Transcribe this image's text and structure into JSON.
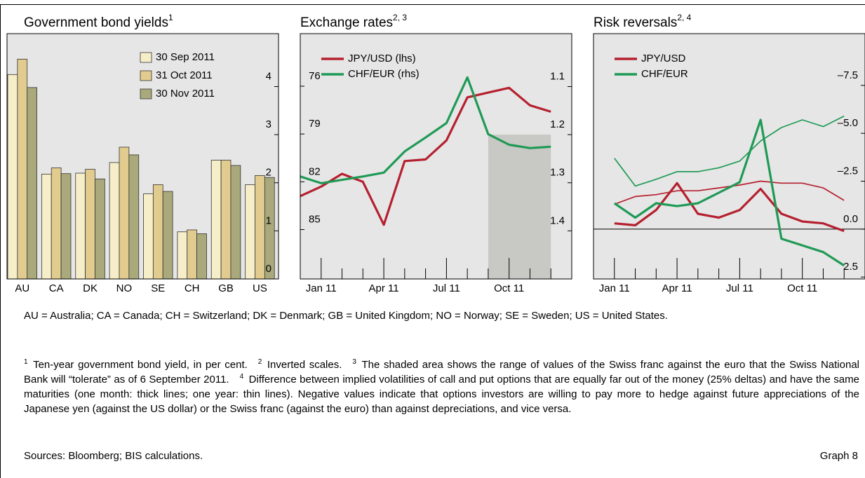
{
  "chart_data": [
    {
      "type": "bar",
      "title": "Government bond yields",
      "title_note": "1",
      "categories": [
        "AU",
        "CA",
        "DK",
        "NO",
        "SE",
        "CH",
        "GB",
        "US"
      ],
      "series": [
        {
          "name": "30 Sep 2011",
          "color": "#f6eec8",
          "values": [
            4.25,
            2.18,
            2.2,
            2.42,
            1.77,
            0.98,
            2.47,
            1.96
          ]
        },
        {
          "name": "31 Oct 2011",
          "color": "#e2cb8e",
          "values": [
            4.57,
            2.31,
            2.28,
            2.74,
            1.96,
            1.02,
            2.47,
            2.15
          ]
        },
        {
          "name": "30 Nov 2011",
          "color": "#a9a97c",
          "values": [
            3.98,
            2.19,
            2.08,
            2.58,
            1.82,
            0.94,
            2.36,
            2.11
          ]
        }
      ],
      "ylim": [
        0,
        5.1
      ],
      "yticks": [
        0,
        1,
        2,
        3,
        4
      ],
      "yaxis_side": "right",
      "legend": "upper right"
    },
    {
      "type": "line",
      "title": "Exchange rates",
      "title_note": "2, 3",
      "x": [
        "2010-12",
        "2011-01",
        "2011-02",
        "2011-03",
        "2011-04",
        "2011-05",
        "2011-06",
        "2011-07",
        "2011-08",
        "2011-09",
        "2011-10",
        "2011-11",
        "2011-12"
      ],
      "series": [
        {
          "name": "JPY/USD (lhs)",
          "color": "#b5202f",
          "axis": "y",
          "values": [
            82.9,
            82.3,
            81.5,
            82.0,
            84.7,
            80.7,
            80.6,
            79.4,
            76.7,
            76.4,
            76.1,
            77.2,
            77.6
          ]
        },
        {
          "name": "CHF/EUR (rhs)",
          "color": "#1f9a55",
          "axis": "y2",
          "values": [
            1.287,
            1.301,
            1.294,
            1.287,
            1.279,
            1.235,
            1.206,
            1.176,
            1.081,
            1.199,
            1.221,
            1.228,
            1.225
          ]
        }
      ],
      "xlim": [
        "2010-12",
        "2012-01"
      ],
      "xticks": [
        {
          "value": "2011-01",
          "label": "Jan 11"
        },
        {
          "value": "2011-04",
          "label": "Apr 11"
        },
        {
          "value": "2011-07",
          "label": "Jul 11"
        },
        {
          "value": "2011-10",
          "label": "Oct 11"
        }
      ],
      "xticks_minor": [
        "2010-12",
        "2011-02",
        "2011-03",
        "2011-05",
        "2011-06",
        "2011-08",
        "2011-09",
        "2011-11",
        "2011-12"
      ],
      "ylim": [
        88.1,
        72.7
      ],
      "yticks": [
        76,
        79,
        82,
        85
      ],
      "y2lim": [
        1.5,
        0.99
      ],
      "y2ticks": [
        1.1,
        1.2,
        1.3,
        1.4
      ],
      "yaxis_side": "left",
      "shade": {
        "x": [
          "2011-09",
          "2011-12"
        ],
        "y2": [
          1.2,
          1.5
        ]
      },
      "legend": "upper left"
    },
    {
      "type": "line",
      "title": "Risk reversals",
      "title_note": "2, 4",
      "x": [
        "2011-01",
        "2011-02",
        "2011-03",
        "2011-04",
        "2011-05",
        "2011-06",
        "2011-07",
        "2011-08",
        "2011-09",
        "2011-10",
        "2011-11",
        "2011-12"
      ],
      "series": [
        {
          "name": "JPY/USD",
          "color": "#b5202f",
          "values": [
            -0.3,
            -0.2,
            -1.0,
            -2.4,
            -0.8,
            -0.6,
            -1.0,
            -2.1,
            -0.8,
            -0.4,
            -0.3,
            0.1
          ],
          "values_1y": [
            -1.3,
            -1.7,
            -1.8,
            -2.0,
            -2.0,
            -2.15,
            -2.3,
            -2.5,
            -2.4,
            -2.4,
            -2.15,
            -1.5
          ]
        },
        {
          "name": "CHF/EUR",
          "color": "#1f9a55",
          "values": [
            -1.35,
            -0.6,
            -1.35,
            -1.2,
            -1.35,
            -1.9,
            -2.45,
            -5.7,
            0.5,
            0.85,
            1.2,
            1.9
          ],
          "values_1y": [
            -3.7,
            -2.25,
            -2.6,
            -3.0,
            -3.0,
            -3.2,
            -3.55,
            -4.6,
            -5.3,
            -5.7,
            -5.35,
            -5.9
          ]
        }
      ],
      "xlim": [
        "2010-12",
        "2012-01"
      ],
      "xticks": [
        {
          "value": "2011-01",
          "label": "Jan 11"
        },
        {
          "value": "2011-04",
          "label": "Apr 11"
        },
        {
          "value": "2011-07",
          "label": "Jul 11"
        },
        {
          "value": "2011-10",
          "label": "Oct 11"
        }
      ],
      "xticks_minor": [
        "2010-12",
        "2011-02",
        "2011-03",
        "2011-05",
        "2011-06",
        "2011-08",
        "2011-09",
        "2011-11",
        "2011-12"
      ],
      "ylim": [
        2.6,
        -10.2
      ],
      "yticks": [
        {
          "value": -7.5,
          "label": "–7.5"
        },
        {
          "value": -5,
          "label": "–5.0"
        },
        {
          "value": -2.5,
          "label": "–2.5"
        },
        {
          "value": 0,
          "label": "0.0"
        },
        2.5
      ],
      "yaxis_side": "right",
      "zero_line": true,
      "legend": "upper left"
    }
  ],
  "notes": {
    "abbreviations": "AU = Australia; CA = Canada; CH = Switzerland; DK = Denmark; GB = United Kingdom; NO = Norway; SE = Sweden; US = United States.",
    "footnotes": [
      {
        "mark": "1",
        "text": "Ten-year government bond yield, in per cent."
      },
      {
        "mark": "2",
        "text": "Inverted scales."
      },
      {
        "mark": "3",
        "text": "The shaded area shows the range of values of the Swiss franc against the euro that the Swiss National Bank will “tolerate” as of 6 September 2011."
      },
      {
        "mark": "4",
        "text": "Difference between implied volatilities of call and put options that are equally far out of the money (25% deltas) and have the same maturities (one month: thick lines; one year: thin lines). Negative values indicate that options investors are willing to pay more to hedge against future appreciations of the Japanese yen (against the US dollar) or the Swiss franc (against the euro) than against depreciations, and vice versa."
      }
    ],
    "sources": "Sources: Bloomberg; BIS calculations.",
    "graph_label": "Graph 8"
  }
}
